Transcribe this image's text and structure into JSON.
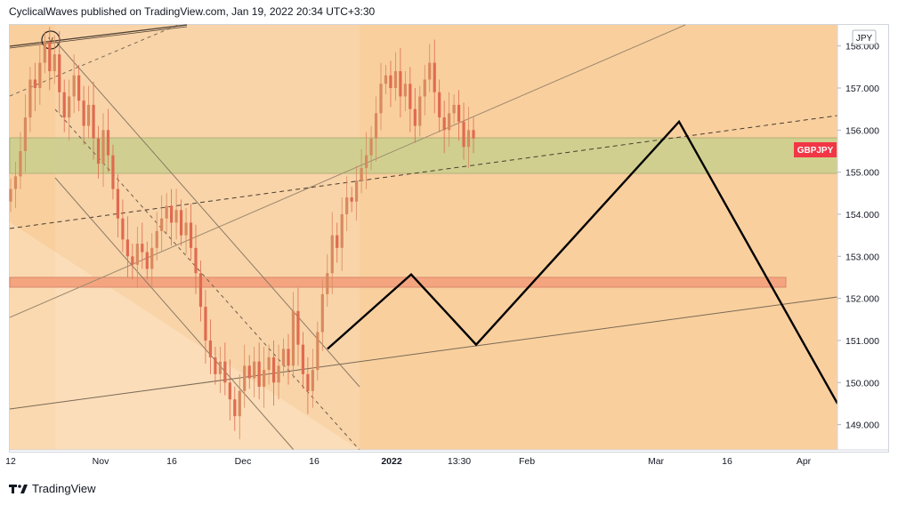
{
  "header": {
    "text": "CyclicalWaves published on TradingView.com, Jan 19, 2022 20:34 UTC+3:30"
  },
  "footer": {
    "brand": "TradingView"
  },
  "chart_data": {
    "type": "candlestick",
    "symbol": "GBPJPY",
    "currency": "JPY",
    "last_price_label": "GBPJPY",
    "ylim": [
      148.4,
      158.5
    ],
    "y_ticks": [
      "158.000",
      "157.000",
      "156.000",
      "155.000",
      "154.000",
      "153.000",
      "152.000",
      "151.000",
      "150.000",
      "149.000"
    ],
    "x_ticks": [
      "12",
      "Nov",
      "16",
      "Dec",
      "16",
      "2022",
      "13:30",
      "Feb",
      "Mar",
      "16",
      "Apr"
    ],
    "colors": {
      "up": "#26a69a",
      "down": "#ef5350",
      "background_zone": "#f9c88f",
      "supply_zone": "#c7cf8f",
      "demand_zone": "#f4a37f"
    },
    "zones": [
      {
        "name": "resistance",
        "from": 155.1,
        "to": 155.97
      },
      {
        "name": "support",
        "from": 152.38,
        "to": 152.6
      }
    ],
    "projection_path": [
      {
        "t": "Dec 20",
        "y": 150.8
      },
      {
        "t": "Jan 3",
        "y": 152.57
      },
      {
        "t": "Jan 19",
        "y": 150.9
      },
      {
        "t": "Mar 7",
        "y": 156.2
      },
      {
        "t": "Apr 1",
        "y": 149.5
      }
    ],
    "price_series_close": [
      154.6,
      154.9,
      155.5,
      156.3,
      157.2,
      157.0,
      157.6,
      158.1,
      157.4,
      157.8,
      156.9,
      156.3,
      156.8,
      157.3,
      156.7,
      156.1,
      156.6,
      155.8,
      155.2,
      156.0,
      155.4,
      154.6,
      153.9,
      153.4,
      153.0,
      152.8,
      153.3,
      153.1,
      152.7,
      153.2,
      153.6,
      153.9,
      154.2,
      153.8,
      154.1,
      153.5,
      153.8,
      153.2,
      152.6,
      151.8,
      151.0,
      150.6,
      150.2,
      150.5,
      150.0,
      149.6,
      149.2,
      149.8,
      150.4,
      150.1,
      150.5,
      149.9,
      150.3,
      150.6,
      150.0,
      150.4,
      150.8,
      150.4,
      151.7,
      150.9,
      150.2,
      149.8,
      150.3,
      151.2,
      152.1,
      152.6,
      153.5,
      153.2,
      154.0,
      154.4,
      154.3,
      154.8,
      155.1,
      155.4,
      155.8,
      156.4,
      157.1,
      157.3,
      157.0,
      157.4,
      156.8,
      157.1,
      156.5,
      156.1,
      156.8,
      157.2,
      157.6,
      156.9,
      156.3,
      156.0,
      156.4,
      156.6,
      156.2,
      155.6,
      156.0,
      155.8
    ]
  }
}
